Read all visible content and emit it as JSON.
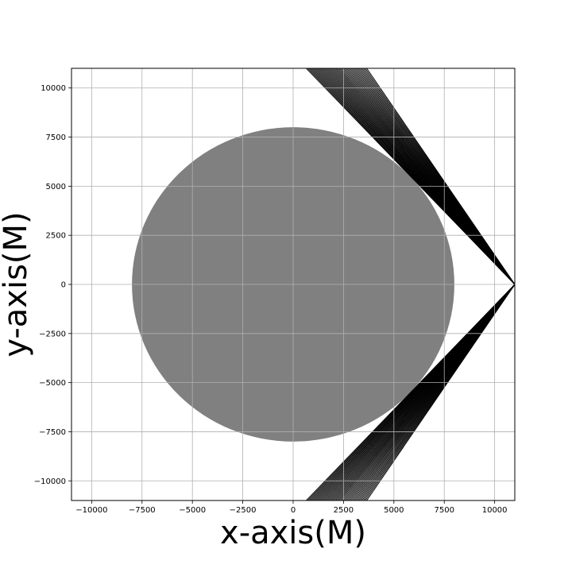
{
  "chart_data": {
    "type": "line",
    "title": "",
    "xlabel": "x-axis(M)",
    "ylabel": "y-axis(M)",
    "xlim": [
      -11000,
      11000
    ],
    "ylim": [
      -11000,
      11000
    ],
    "x_ticks": [
      -10000,
      -7500,
      -5000,
      -2500,
      0,
      2500,
      5000,
      7500,
      10000
    ],
    "y_ticks": [
      -10000,
      -7500,
      -5000,
      -2500,
      0,
      2500,
      5000,
      7500,
      10000
    ],
    "x_tick_labels": [
      "−10000",
      "−7500",
      "−5000",
      "−2500",
      "0",
      "2500",
      "5000",
      "7500",
      "10000"
    ],
    "y_tick_labels": [
      "−10000",
      "−7500",
      "−5000",
      "−2500",
      "0",
      "2500",
      "5000",
      "7500",
      "10000"
    ],
    "grid": true,
    "legend": "none",
    "body": {
      "shape": "circle",
      "center": [
        0,
        0
      ],
      "radius": 8000,
      "color": "#808080"
    },
    "rays": {
      "color": "#000000",
      "count": 40,
      "source_point": [
        11000,
        0
      ],
      "upper_end_x_range": [
        650,
        3650
      ],
      "upper_end_y": 11000,
      "lower_end_x_range": [
        650,
        3650
      ],
      "lower_end_y": -11000
    }
  }
}
